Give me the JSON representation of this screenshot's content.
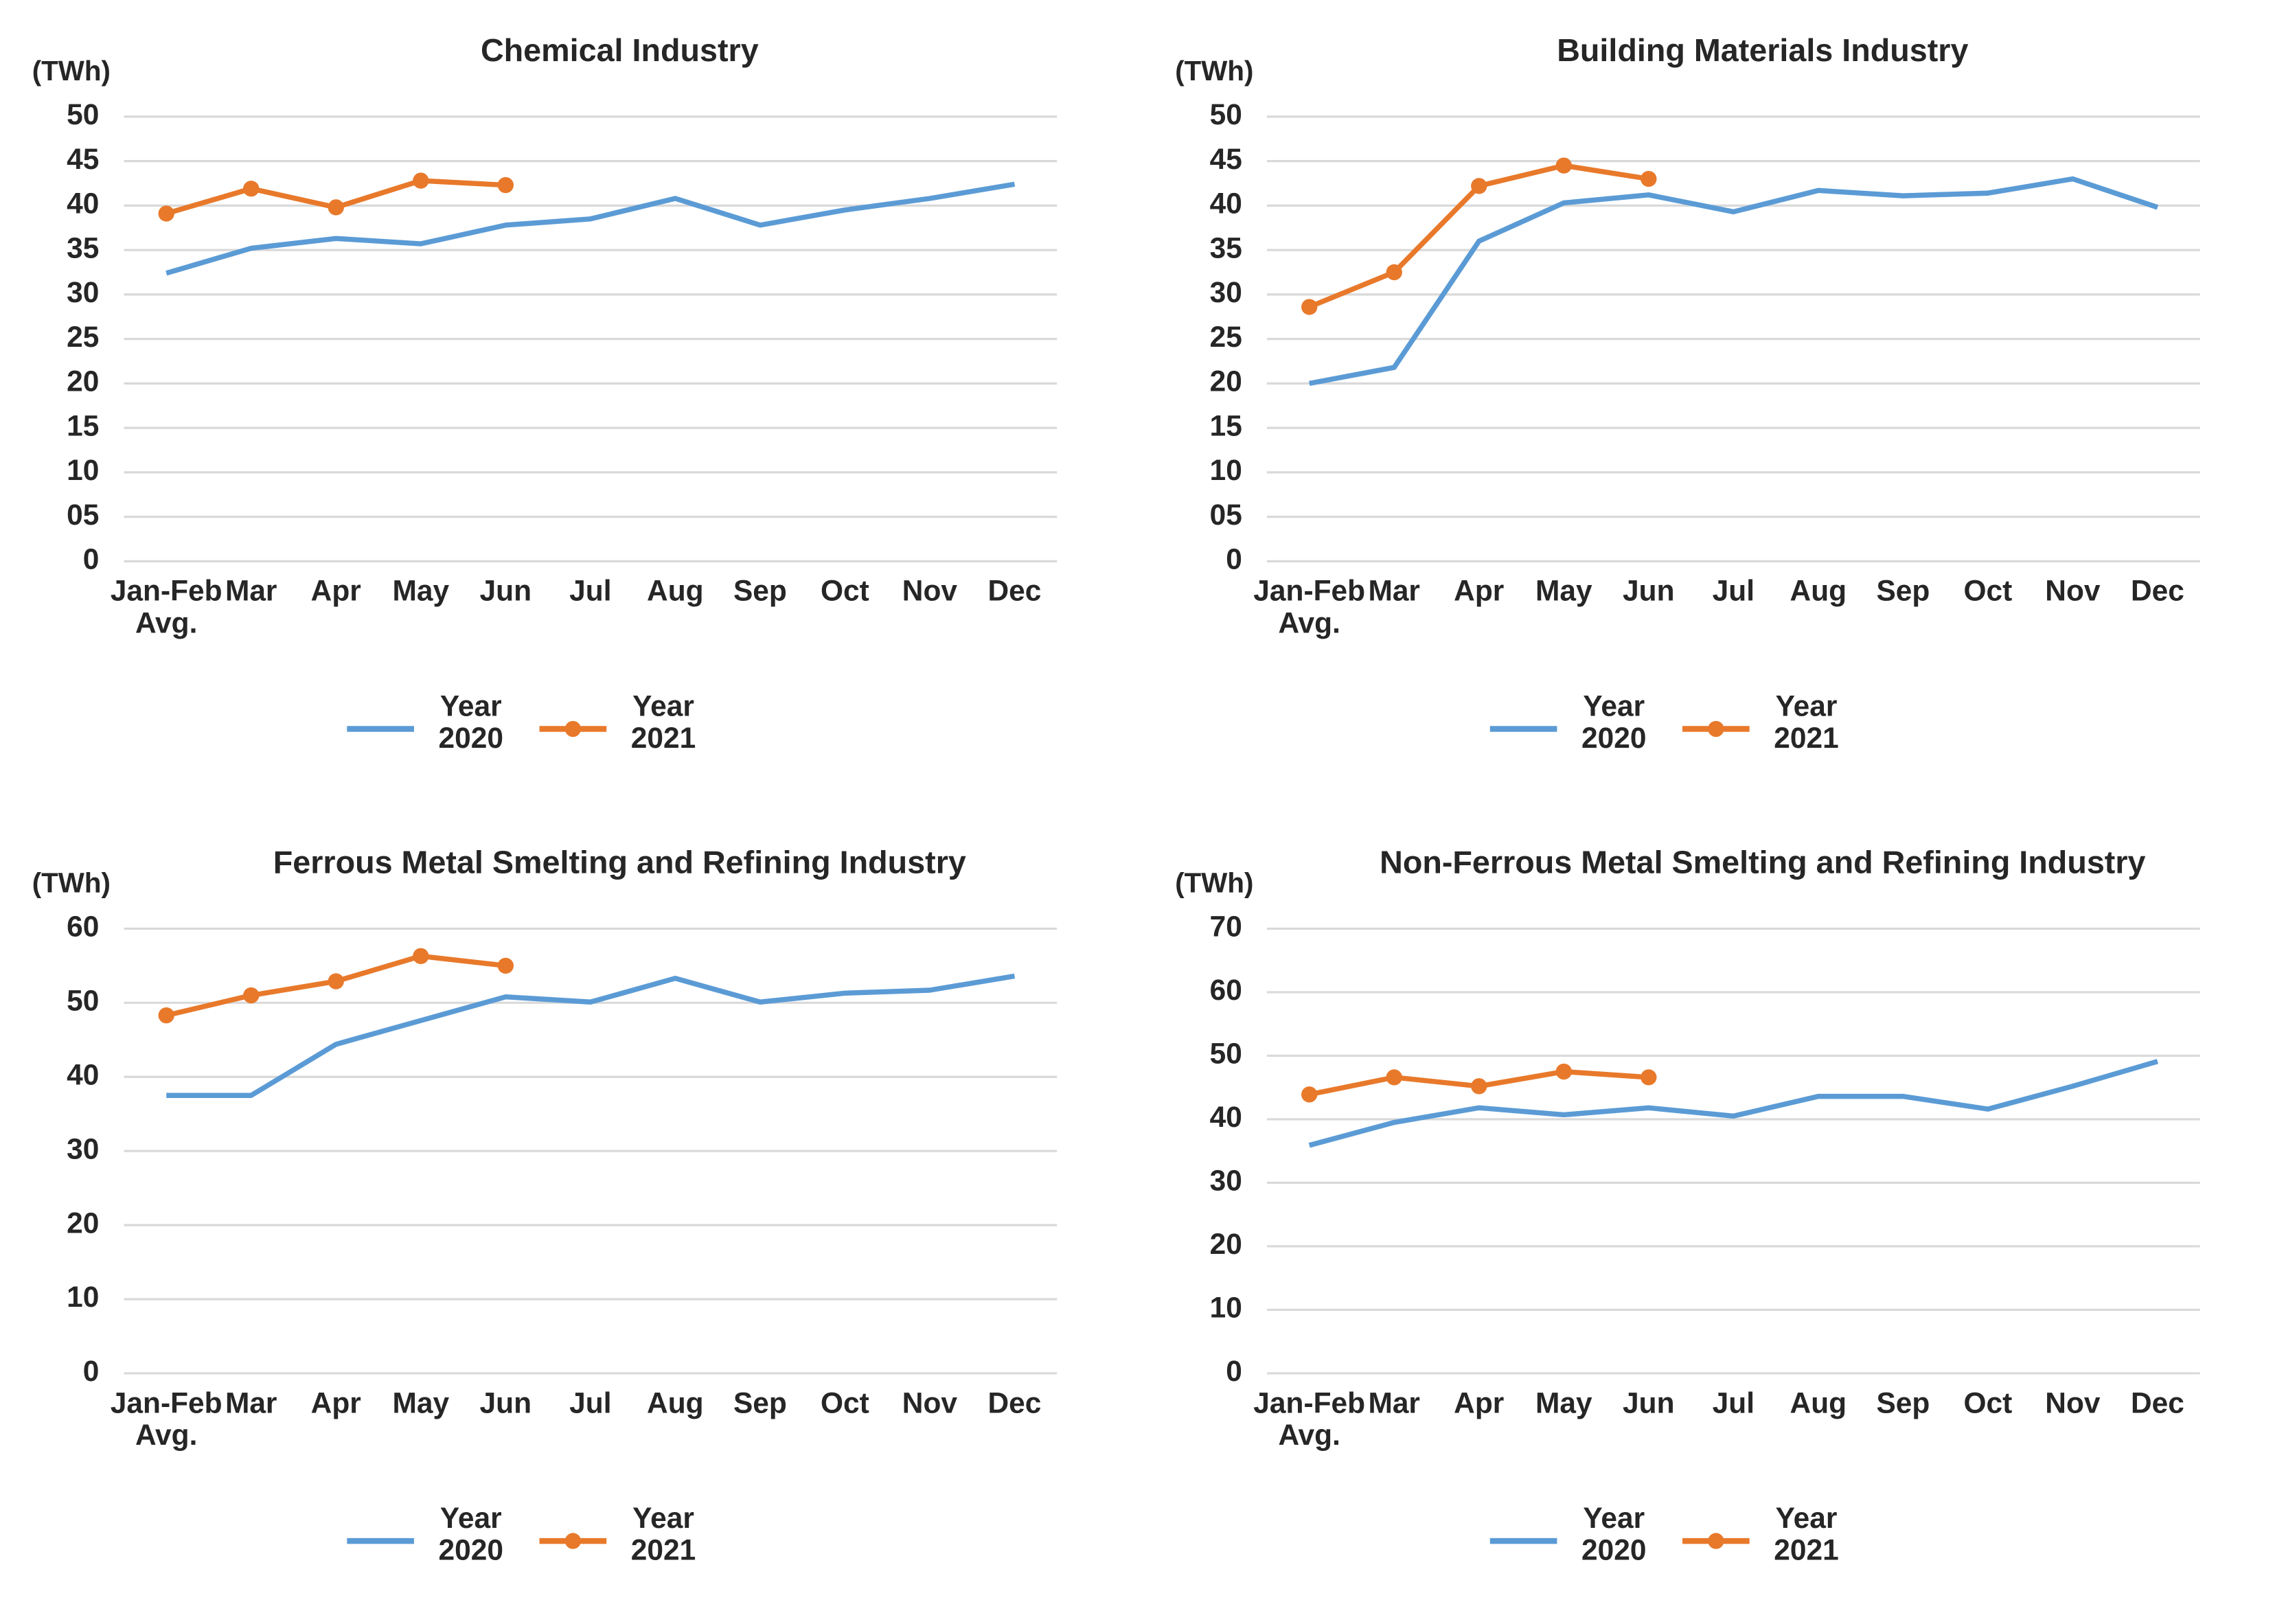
{
  "chart_data": [
    {
      "type": "line",
      "title": "Chemical Industry",
      "unit": "(TWh)",
      "categories": [
        "Jan-Feb\nAvg.",
        "Mar",
        "Apr",
        "May",
        "Jun",
        "Jul",
        "Aug",
        "Sep",
        "Oct",
        "Nov",
        "Dec"
      ],
      "ylim": [
        0,
        50
      ],
      "yticks": [
        0,
        {
          "value": 5,
          "label": "05"
        },
        10,
        15,
        20,
        25,
        30,
        35,
        40,
        45,
        50
      ],
      "grid": true,
      "series": [
        {
          "name": "Year\n2020",
          "color": "#5b9bd5",
          "marker": false,
          "values": [
            32.4,
            35.2,
            36.3,
            35.7,
            37.8,
            38.5,
            40.8,
            37.8,
            39.5,
            40.8,
            42.4
          ]
        },
        {
          "name": "Year\n2021",
          "color": "#e8792b",
          "marker": true,
          "values": [
            39.1,
            41.9,
            39.8,
            42.8,
            42.3,
            null,
            null,
            null,
            null,
            null,
            null
          ]
        }
      ]
    },
    {
      "type": "line",
      "title": "Building Materials Industry",
      "unit": "(TWh)",
      "categories": [
        "Jan-Feb\nAvg.",
        "Mar",
        "Apr",
        "May",
        "Jun",
        "Jul",
        "Aug",
        "Sep",
        "Oct",
        "Nov",
        "Dec"
      ],
      "ylim": [
        0,
        50
      ],
      "yticks": [
        0,
        {
          "value": 5,
          "label": "05"
        },
        10,
        15,
        20,
        25,
        30,
        35,
        40,
        45,
        50
      ],
      "grid": true,
      "series": [
        {
          "name": "Year\n2020",
          "color": "#5b9bd5",
          "marker": false,
          "values": [
            20.0,
            21.8,
            36.0,
            40.3,
            41.2,
            39.3,
            41.7,
            41.1,
            41.4,
            43.0,
            39.8
          ]
        },
        {
          "name": "Year\n2021",
          "color": "#e8792b",
          "marker": true,
          "values": [
            28.6,
            32.5,
            42.2,
            44.5,
            43.0,
            null,
            null,
            null,
            null,
            null,
            null
          ]
        }
      ]
    },
    {
      "type": "line",
      "title": "Ferrous Metal Smelting and Refining Industry",
      "unit": "(TWh)",
      "categories": [
        "Jan-Feb\nAvg.",
        "Mar",
        "Apr",
        "May",
        "Jun",
        "Jul",
        "Aug",
        "Sep",
        "Oct",
        "Nov",
        "Dec"
      ],
      "ylim": [
        0,
        60
      ],
      "yticks": [
        0,
        10,
        20,
        30,
        40,
        50,
        60
      ],
      "grid": true,
      "series": [
        {
          "name": "Year\n2020",
          "color": "#5b9bd5",
          "marker": false,
          "values": [
            37.5,
            37.5,
            44.4,
            47.6,
            50.8,
            50.1,
            53.3,
            50.1,
            51.3,
            51.7,
            53.6
          ]
        },
        {
          "name": "Year\n2021",
          "color": "#e8792b",
          "marker": true,
          "values": [
            48.3,
            51.0,
            52.9,
            56.3,
            55.0,
            null,
            null,
            null,
            null,
            null,
            null
          ]
        }
      ]
    },
    {
      "type": "line",
      "title": "Non-Ferrous Metal Smelting and Refining Industry",
      "unit": "(TWh)",
      "categories": [
        "Jan-Feb\nAvg.",
        "Mar",
        "Apr",
        "May",
        "Jun",
        "Jul",
        "Aug",
        "Sep",
        "Oct",
        "Nov",
        "Dec"
      ],
      "ylim": [
        0,
        70
      ],
      "yticks": [
        0,
        10,
        20,
        30,
        40,
        50,
        60,
        70
      ],
      "grid": true,
      "series": [
        {
          "name": "Year\n2020",
          "color": "#5b9bd5",
          "marker": false,
          "values": [
            35.9,
            39.5,
            41.8,
            40.7,
            41.8,
            40.5,
            43.6,
            43.6,
            41.6,
            45.2,
            49.1
          ]
        },
        {
          "name": "Year\n2021",
          "color": "#e8792b",
          "marker": true,
          "values": [
            43.9,
            46.6,
            45.2,
            47.5,
            46.6,
            null,
            null,
            null,
            null,
            null,
            null
          ]
        }
      ]
    }
  ]
}
